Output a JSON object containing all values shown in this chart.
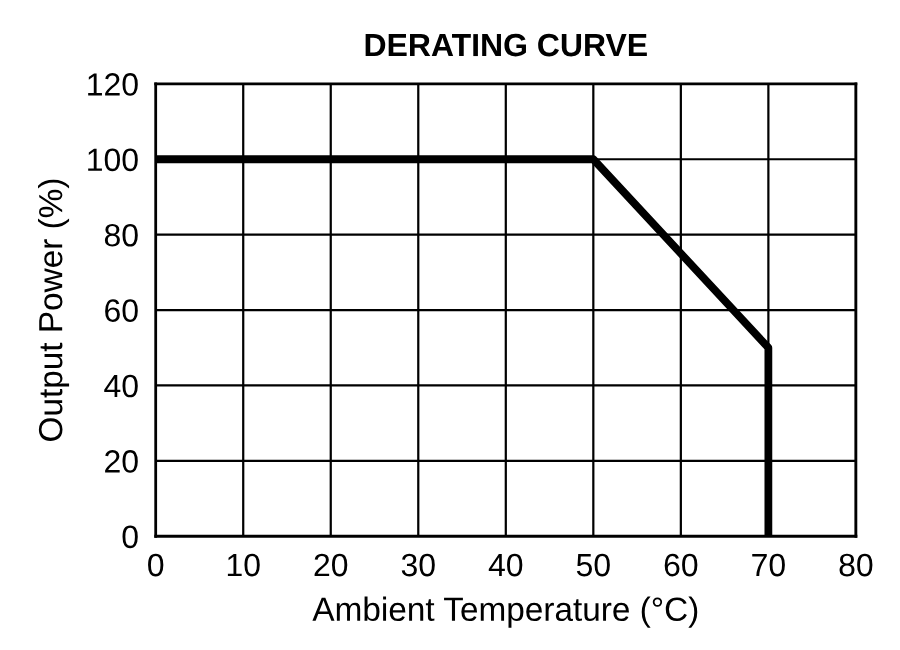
{
  "chart_data": {
    "type": "line",
    "title": "DERATING CURVE",
    "xlabel": "Ambient Temperature (°C)",
    "ylabel": "Output Power (%)",
    "series": [
      {
        "color": "#000000",
        "x": [
          0,
          50,
          70,
          70
        ],
        "values": [
          100,
          100,
          50,
          0
        ]
      }
    ],
    "xlim": [
      0,
      80
    ],
    "ylim": [
      0,
      120
    ],
    "xticks": [
      0,
      10,
      20,
      30,
      40,
      50,
      60,
      70,
      80
    ],
    "yticks": [
      0,
      20,
      40,
      60,
      80,
      100,
      120
    ],
    "grid": true,
    "marker": "none",
    "line_style": "solid"
  }
}
